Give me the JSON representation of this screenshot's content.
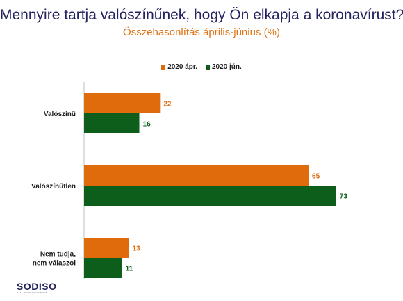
{
  "chart_data": {
    "type": "bar",
    "orientation": "horizontal",
    "title": "Mennyire tartja valószínűnek, hogy Ön elkapja a koronavírust?",
    "subtitle": "Összehasonlítás április-június (%)",
    "categories": [
      "Valószínű",
      "Valószínűtlen",
      "Nem tudja, nem válaszol"
    ],
    "category_lines": [
      [
        "Valószínű"
      ],
      [
        "Valószínűtlen"
      ],
      [
        "Nem tudja,",
        "nem válaszol"
      ]
    ],
    "series": [
      {
        "name": "2020 ápr.",
        "values": [
          22,
          65,
          13
        ],
        "color": "#e06b0b"
      },
      {
        "name": "2020 jún.",
        "values": [
          16,
          73,
          11
        ],
        "color": "#0c5e1a"
      }
    ],
    "xlim": [
      0,
      100
    ],
    "grid": false,
    "legend_position": "top-center",
    "data_labels": true
  },
  "logo": {
    "text": "SODISO",
    "tagline": "DATA DRIVEN SOLUTIONS"
  }
}
